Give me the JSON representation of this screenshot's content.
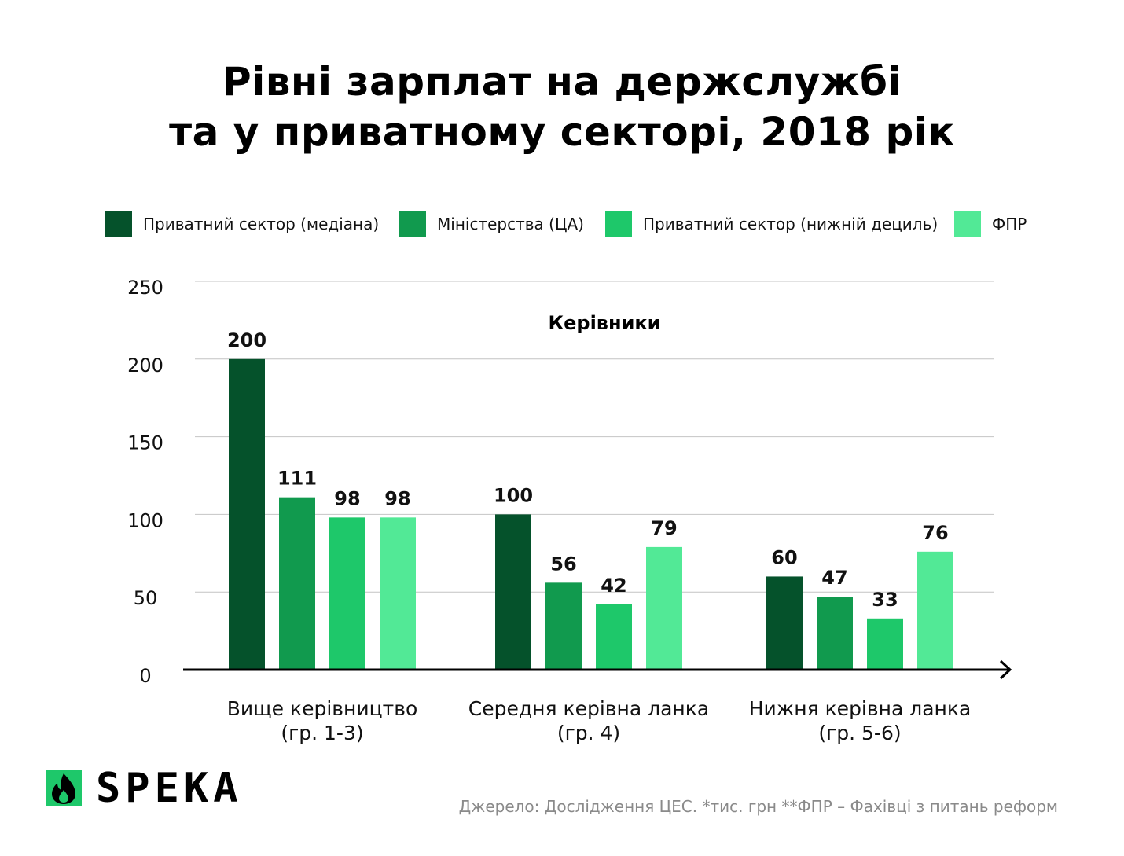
{
  "title": {
    "line1": "Рівні зарплат на держслужбі",
    "line2": "та у приватному секторі, 2018 рік"
  },
  "legend": [
    {
      "label": "Приватний сектор (медіана)",
      "color": "#05522b"
    },
    {
      "label": "Міністерства (ЦА)",
      "color": "#119a4e"
    },
    {
      "label": "Приватний сектор (нижній дециль)",
      "color": "#1ec86a"
    },
    {
      "label": "ФПР",
      "color": "#52e996"
    }
  ],
  "chart_data": {
    "type": "bar",
    "subtitle": "Керівники",
    "categories": [
      "Вище керівництво\n(гр. 1-3)",
      "Середня керівна ланка\n(гр. 4)",
      "Нижня керівна ланка\n(гр. 5-6)"
    ],
    "series": [
      {
        "name": "Приватний сектор (медіана)",
        "values": [
          200,
          100,
          60
        ],
        "color": "#05522b"
      },
      {
        "name": "Міністерства (ЦА)",
        "values": [
          111,
          56,
          47
        ],
        "color": "#119a4e"
      },
      {
        "name": "Приватний сектор (нижній дециль)",
        "values": [
          98,
          42,
          33
        ],
        "color": "#1ec86a"
      },
      {
        "name": "ФПР",
        "values": [
          98,
          79,
          76
        ],
        "color": "#52e996"
      }
    ],
    "yticks": [
      "0",
      "50",
      "100",
      "150",
      "200",
      "250"
    ],
    "ylim": [
      0,
      250
    ],
    "grid": true,
    "legend_position": "top"
  },
  "logo": {
    "text": "SPEKA"
  },
  "source": "Джерело: Дослідження ЦЕС. *тис. грн  **ФПР – Фахівці з питань реформ"
}
